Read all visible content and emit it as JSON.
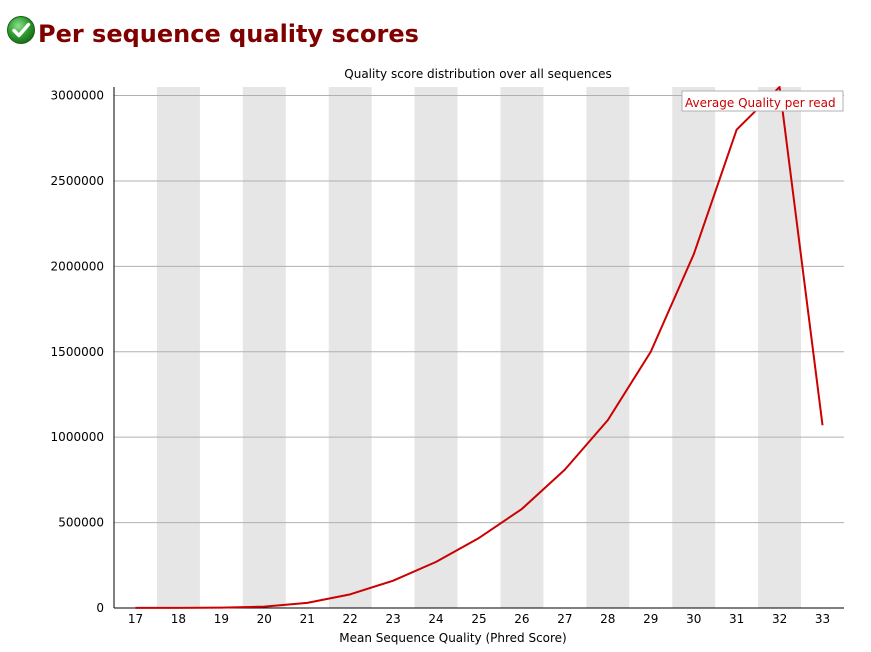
{
  "header": {
    "title": "Per sequence quality scores",
    "status_icon": "check-circle-icon",
    "status_color": "#2e9b2e"
  },
  "chart_data": {
    "type": "line",
    "title": "Quality score distribution over all sequences",
    "xlabel": "Mean Sequence Quality (Phred Score)",
    "ylabel": "",
    "x": [
      17,
      18,
      19,
      20,
      21,
      22,
      23,
      24,
      25,
      26,
      27,
      28,
      29,
      30,
      31,
      32,
      33
    ],
    "ylim": [
      0,
      3050000
    ],
    "yticks": [
      0,
      500000,
      1000000,
      1500000,
      2000000,
      2500000,
      3000000
    ],
    "yticklabels": [
      "0",
      "500000",
      "1000000",
      "1500000",
      "2000000",
      "2500000",
      "3000000"
    ],
    "grid": true,
    "series": [
      {
        "name": "Average Quality per read",
        "color": "#cc0000",
        "values": [
          1000,
          1000,
          2000,
          8000,
          30000,
          80000,
          160000,
          270000,
          410000,
          580000,
          810000,
          1100000,
          1500000,
          2070000,
          2800000,
          3050000,
          1070000
        ]
      }
    ],
    "legend_position": "top-right",
    "stripe_color": "#e6e6e6",
    "gridline_color": "#b0b0b0"
  }
}
